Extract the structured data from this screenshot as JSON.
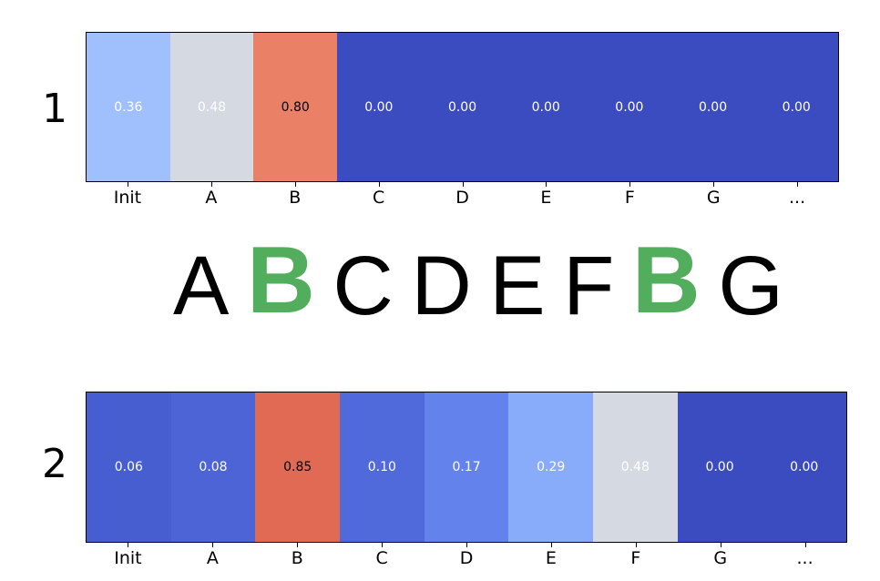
{
  "chart_data": [
    {
      "type": "heatmap",
      "row_label": "1",
      "categories": [
        "Init",
        "A",
        "B",
        "C",
        "D",
        "E",
        "F",
        "G",
        "..."
      ],
      "values": [
        0.36,
        0.48,
        0.8,
        0.0,
        0.0,
        0.0,
        0.0,
        0.0,
        0.0
      ],
      "value_labels": [
        "0.36",
        "0.48",
        "0.80",
        "0.00",
        "0.00",
        "0.00",
        "0.00",
        "0.00",
        "0.00"
      ],
      "colormap": "coolwarm"
    },
    {
      "type": "heatmap",
      "row_label": "2",
      "categories": [
        "Init",
        "A",
        "B",
        "C",
        "D",
        "E",
        "F",
        "G",
        "..."
      ],
      "values": [
        0.06,
        0.08,
        0.85,
        0.1,
        0.17,
        0.29,
        0.48,
        0.0,
        0.0
      ],
      "value_labels": [
        "0.06",
        "0.08",
        "0.85",
        "0.10",
        "0.17",
        "0.29",
        "0.48",
        "0.00",
        "0.00"
      ],
      "colormap": "coolwarm"
    }
  ],
  "sequence": {
    "letters": [
      "A",
      "B",
      "C",
      "D",
      "E",
      "F",
      "B",
      "G"
    ],
    "highlighted": [
      false,
      true,
      false,
      false,
      false,
      false,
      true,
      false
    ],
    "highlight_color": "#52ae5c"
  }
}
